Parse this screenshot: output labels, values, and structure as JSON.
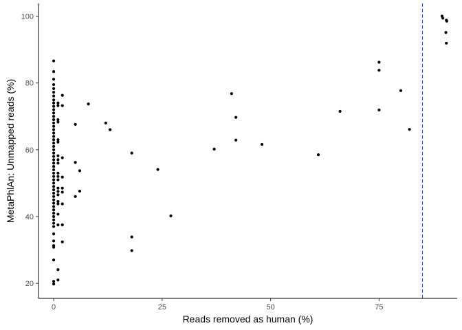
{
  "chart_data": {
    "type": "scatter",
    "title": "",
    "xlabel": "Reads removed as human (%)",
    "ylabel": "MetaPhlAn: Unmapped reads (%)",
    "xlim": [
      -3.5,
      93
    ],
    "ylim": [
      15.5,
      103.8
    ],
    "xticks": [
      0,
      25,
      50,
      75
    ],
    "yticks": [
      20,
      40,
      60,
      80,
      100
    ],
    "grid": false,
    "legend": "none",
    "point_color": "#000000",
    "vline": {
      "x": 85,
      "color": "#2b4fc9",
      "style": "dashed"
    },
    "points": [
      {
        "x": 0,
        "y": 86.6
      },
      {
        "x": 0,
        "y": 83.4
      },
      {
        "x": 0,
        "y": 81.1
      },
      {
        "x": 0,
        "y": 79.5
      },
      {
        "x": 0,
        "y": 78.3
      },
      {
        "x": 0,
        "y": 77.2
      },
      {
        "x": 0,
        "y": 76.1
      },
      {
        "x": 0,
        "y": 74.9
      },
      {
        "x": 0,
        "y": 74.0
      },
      {
        "x": 0,
        "y": 73.0
      },
      {
        "x": 0,
        "y": 72.0
      },
      {
        "x": 0,
        "y": 71.0
      },
      {
        "x": 0,
        "y": 70.0
      },
      {
        "x": 0,
        "y": 69.0
      },
      {
        "x": 0,
        "y": 68.0
      },
      {
        "x": 0,
        "y": 67.0
      },
      {
        "x": 0,
        "y": 66.0
      },
      {
        "x": 0,
        "y": 65.0
      },
      {
        "x": 0,
        "y": 64.0
      },
      {
        "x": 0,
        "y": 63.0
      },
      {
        "x": 0,
        "y": 62.0
      },
      {
        "x": 0,
        "y": 61.0
      },
      {
        "x": 0,
        "y": 60.0
      },
      {
        "x": 0,
        "y": 59.0
      },
      {
        "x": 0,
        "y": 58.0
      },
      {
        "x": 0,
        "y": 57.0
      },
      {
        "x": 0,
        "y": 56.0
      },
      {
        "x": 0,
        "y": 55.0
      },
      {
        "x": 0,
        "y": 54.0
      },
      {
        "x": 0,
        "y": 53.0
      },
      {
        "x": 0,
        "y": 52.0
      },
      {
        "x": 0,
        "y": 51.0
      },
      {
        "x": 0,
        "y": 50.0
      },
      {
        "x": 0,
        "y": 49.0
      },
      {
        "x": 0,
        "y": 48.0
      },
      {
        "x": 0,
        "y": 47.0
      },
      {
        "x": 0,
        "y": 46.0
      },
      {
        "x": 0,
        "y": 45.0
      },
      {
        "x": 0,
        "y": 44.0
      },
      {
        "x": 0,
        "y": 43.0
      },
      {
        "x": 0,
        "y": 42.0
      },
      {
        "x": 0,
        "y": 41.0
      },
      {
        "x": 0,
        "y": 40.0
      },
      {
        "x": 0,
        "y": 39.0
      },
      {
        "x": 0,
        "y": 38.0
      },
      {
        "x": 0,
        "y": 37.0
      },
      {
        "x": 0,
        "y": 34.8
      },
      {
        "x": 0,
        "y": 32.7
      },
      {
        "x": 0,
        "y": 31.3
      },
      {
        "x": 0,
        "y": 30.8
      },
      {
        "x": 0,
        "y": 27.0
      },
      {
        "x": 0,
        "y": 20.6
      },
      {
        "x": 0,
        "y": 19.8
      },
      {
        "x": 1,
        "y": 74.0
      },
      {
        "x": 1,
        "y": 73.2
      },
      {
        "x": 1,
        "y": 69.0
      },
      {
        "x": 1,
        "y": 68.3
      },
      {
        "x": 1,
        "y": 63.0
      },
      {
        "x": 1,
        "y": 62.3
      },
      {
        "x": 1,
        "y": 58.2
      },
      {
        "x": 1,
        "y": 57.0
      },
      {
        "x": 1,
        "y": 56.0
      },
      {
        "x": 1,
        "y": 53.0
      },
      {
        "x": 1,
        "y": 52.0
      },
      {
        "x": 1,
        "y": 51.0
      },
      {
        "x": 1,
        "y": 48.5
      },
      {
        "x": 1,
        "y": 47.5
      },
      {
        "x": 1,
        "y": 46.5
      },
      {
        "x": 1,
        "y": 44.5
      },
      {
        "x": 1,
        "y": 43.8
      },
      {
        "x": 1,
        "y": 40.7
      },
      {
        "x": 1,
        "y": 37.5
      },
      {
        "x": 1,
        "y": 24.1
      },
      {
        "x": 1,
        "y": 21.0
      },
      {
        "x": 2,
        "y": 76.3
      },
      {
        "x": 2,
        "y": 73.2
      },
      {
        "x": 2,
        "y": 57.6
      },
      {
        "x": 2,
        "y": 51.8
      },
      {
        "x": 2,
        "y": 48.5
      },
      {
        "x": 2,
        "y": 47.3
      },
      {
        "x": 2,
        "y": 43.8
      },
      {
        "x": 2,
        "y": 37.5
      },
      {
        "x": 2,
        "y": 32.4
      },
      {
        "x": 5,
        "y": 67.6
      },
      {
        "x": 5,
        "y": 56.2
      },
      {
        "x": 5,
        "y": 46.0
      },
      {
        "x": 6,
        "y": 53.7
      },
      {
        "x": 6,
        "y": 47.6
      },
      {
        "x": 8,
        "y": 73.7
      },
      {
        "x": 12,
        "y": 68.0
      },
      {
        "x": 13,
        "y": 66.0
      },
      {
        "x": 18,
        "y": 59.0
      },
      {
        "x": 18,
        "y": 33.9
      },
      {
        "x": 18,
        "y": 29.8
      },
      {
        "x": 24,
        "y": 54.1
      },
      {
        "x": 27,
        "y": 40.2
      },
      {
        "x": 37,
        "y": 60.2
      },
      {
        "x": 41,
        "y": 76.8
      },
      {
        "x": 42,
        "y": 69.7
      },
      {
        "x": 42,
        "y": 62.9
      },
      {
        "x": 48,
        "y": 61.6
      },
      {
        "x": 61,
        "y": 58.5
      },
      {
        "x": 66,
        "y": 71.5
      },
      {
        "x": 75,
        "y": 86.2
      },
      {
        "x": 75,
        "y": 83.8
      },
      {
        "x": 75,
        "y": 71.9
      },
      {
        "x": 80,
        "y": 77.7
      },
      {
        "x": 82,
        "y": 66.1
      },
      {
        "x": 89.5,
        "y": 100.0
      },
      {
        "x": 89.7,
        "y": 99.4
      },
      {
        "x": 90.5,
        "y": 98.8
      },
      {
        "x": 90.6,
        "y": 98.5
      },
      {
        "x": 90.4,
        "y": 95.1
      },
      {
        "x": 90.5,
        "y": 91.9
      }
    ]
  }
}
